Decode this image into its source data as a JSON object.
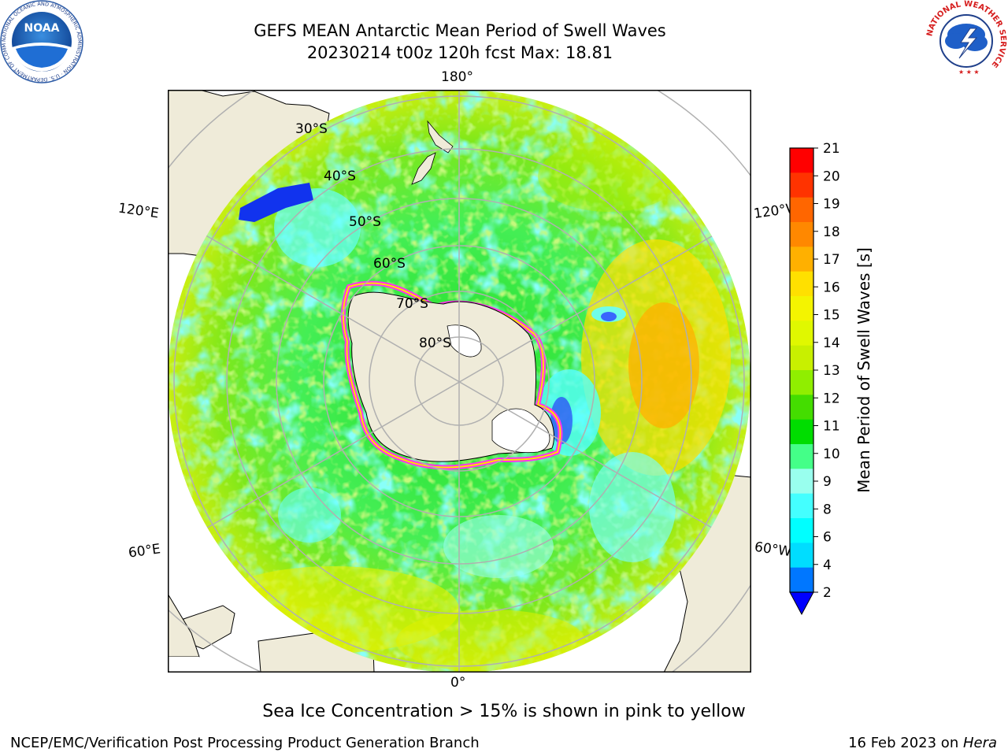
{
  "header": {
    "title_line1": "GEFS MEAN Antarctic Mean Period of Swell Waves",
    "title_line2": "20230214 t00z 120h fcst   Max: 18.81"
  },
  "logos": {
    "left": {
      "name": "noaa-logo",
      "text": "NOAA",
      "ring_text": "NATIONAL OCEANIC AND ATMOSPHERIC ADMINISTRATION · U.S. DEPARTMENT OF COMMERCE"
    },
    "right": {
      "name": "nws-logo",
      "ring_text": "NATIONAL WEATHER SERVICE"
    }
  },
  "map": {
    "projection": "south-polar-stereographic",
    "longitude_labels": {
      "top": "180°",
      "bottom": "0°",
      "upper_left": "120°E",
      "upper_right": "120°W",
      "lower_left": "60°E",
      "lower_right": "60°W"
    },
    "latitude_labels": [
      "30°S",
      "40°S",
      "50°S",
      "60°S",
      "70°S",
      "80°S"
    ],
    "colors": {
      "land": "#efebd9",
      "ice_fill": "#ffffff",
      "ice_edge": "#ff33ee",
      "grid": "#b0b0b0"
    }
  },
  "colorbar": {
    "label": "Mean Period of Swell Waves [s]",
    "ticks": [
      "21",
      "20",
      "19",
      "18",
      "17",
      "16",
      "15",
      "14",
      "13",
      "12",
      "11",
      "10",
      "9",
      "8",
      "6",
      "4",
      "2"
    ],
    "colors_top_to_bottom": [
      "#ff0000",
      "#ff3300",
      "#ff6600",
      "#ff8800",
      "#ffb000",
      "#ffe000",
      "#f4f400",
      "#e0f800",
      "#c8f000",
      "#90ee00",
      "#44dd00",
      "#00dd00",
      "#44ff88",
      "#99ffee",
      "#44ffff",
      "#00ffff",
      "#00ddff",
      "#0077ff"
    ],
    "extend_color": "#0000ff"
  },
  "footer": {
    "note": "Sea Ice Concentration > 15% is shown in pink to yellow",
    "left": "NCEP/EMC/Verification Post Processing Product Generation Branch",
    "right_date": "16 Feb 2023 on ",
    "right_host": "Hera"
  }
}
